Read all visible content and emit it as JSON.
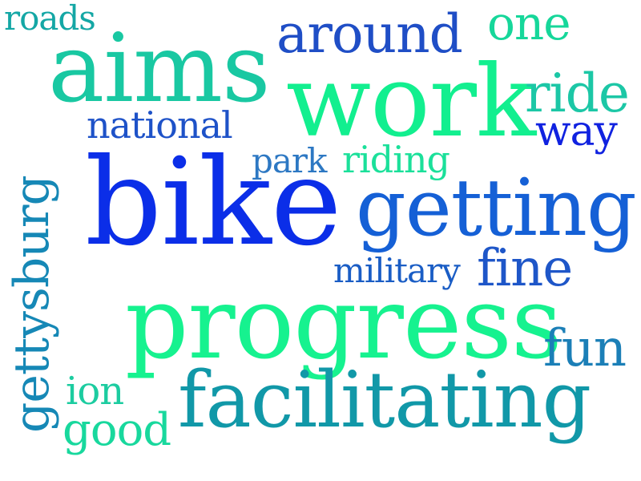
{
  "word_cloud": {
    "words": [
      {
        "key": "roads",
        "text": "roads",
        "color": "#14a7a5"
      },
      {
        "key": "aims",
        "text": "aims",
        "color": "#19c8a2"
      },
      {
        "key": "around",
        "text": "around",
        "color": "#1f4ec6"
      },
      {
        "key": "one",
        "text": "one",
        "color": "#16d79a"
      },
      {
        "key": "work",
        "text": "work",
        "color": "#12ef8f"
      },
      {
        "key": "ride",
        "text": "ride",
        "color": "#1cc7a6"
      },
      {
        "key": "national",
        "text": "national",
        "color": "#1e52c8"
      },
      {
        "key": "way",
        "text": "way",
        "color": "#1022e0"
      },
      {
        "key": "park",
        "text": "park",
        "color": "#2d78c3"
      },
      {
        "key": "riding",
        "text": "riding",
        "color": "#1be09a"
      },
      {
        "key": "bike",
        "text": "bike",
        "color": "#0b2ee8"
      },
      {
        "key": "getting",
        "text": "getting",
        "color": "#1560d6"
      },
      {
        "key": "gettysburg",
        "text": "gettysburg",
        "color": "#1688b6"
      },
      {
        "key": "military",
        "text": "military",
        "color": "#1a5dc5"
      },
      {
        "key": "fine",
        "text": "fine",
        "color": "#1e56c8"
      },
      {
        "key": "progress",
        "text": "progress",
        "color": "#16f28f"
      },
      {
        "key": "fun",
        "text": "fun",
        "color": "#1b7fb7"
      },
      {
        "key": "ion",
        "text": "ion",
        "color": "#1ccca0"
      },
      {
        "key": "facilitating",
        "text": "facilitating",
        "color": "#1198a8"
      },
      {
        "key": "good",
        "text": "good",
        "color": "#18d89d"
      }
    ]
  }
}
